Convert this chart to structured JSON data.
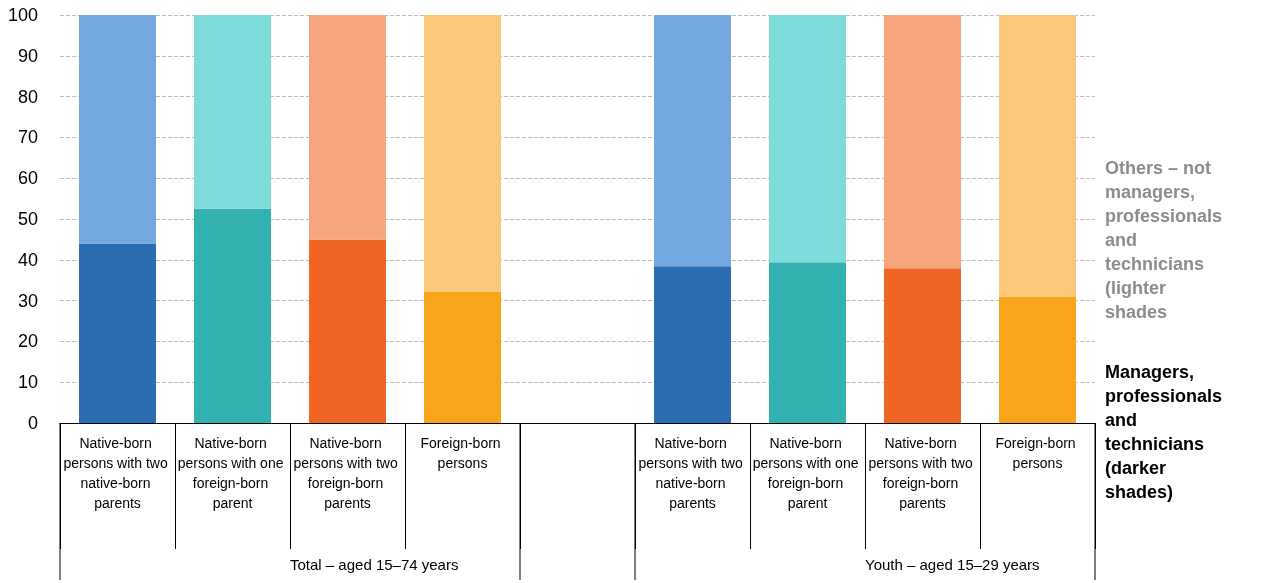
{
  "chart_data": {
    "type": "bar",
    "stacked": true,
    "categories": [
      "Native-born persons with two native-born parents",
      "Native-born persons with one foreign-born parent",
      "Native-born persons with two foreign-born parents",
      "Foreign-born persons",
      null,
      "Native-born persons with two native-born parents",
      "Native-born persons with one foreign-born parent",
      "Native-born persons with two foreign-born parents",
      "Foreign-born persons"
    ],
    "series": [
      {
        "name": "Managers, professionals and technicians (darker shades)",
        "colors": [
          "#2a6db3",
          "#33b0b0",
          "#ef6624",
          "#f9a51b",
          null,
          "#2a6db3",
          "#33b0b0",
          "#ef6624",
          "#f9a51b"
        ],
        "values": [
          44,
          52.5,
          45,
          32.2,
          null,
          38.4,
          39.4,
          37.9,
          31
        ]
      },
      {
        "name": "Others – not managers, professionals and technicians (lighter shades",
        "colors": [
          "#74a8e0",
          "#7ddcda",
          "#f6a57d",
          "#fac878",
          null,
          "#74a8e0",
          "#7ddcda",
          "#f6a57d",
          "#fac878"
        ],
        "values": [
          56,
          47.5,
          55,
          67.8,
          null,
          61.6,
          60.6,
          62.1,
          69
        ]
      }
    ],
    "annotations": [
      "Total – aged 15–74 years",
      "Youth – aged 15–29 years"
    ],
    "ylim": [
      0,
      100
    ],
    "yticks": [
      0,
      10,
      20,
      30,
      40,
      50,
      60,
      70,
      80,
      90,
      100
    ],
    "grid": "y",
    "legend": false
  }
}
